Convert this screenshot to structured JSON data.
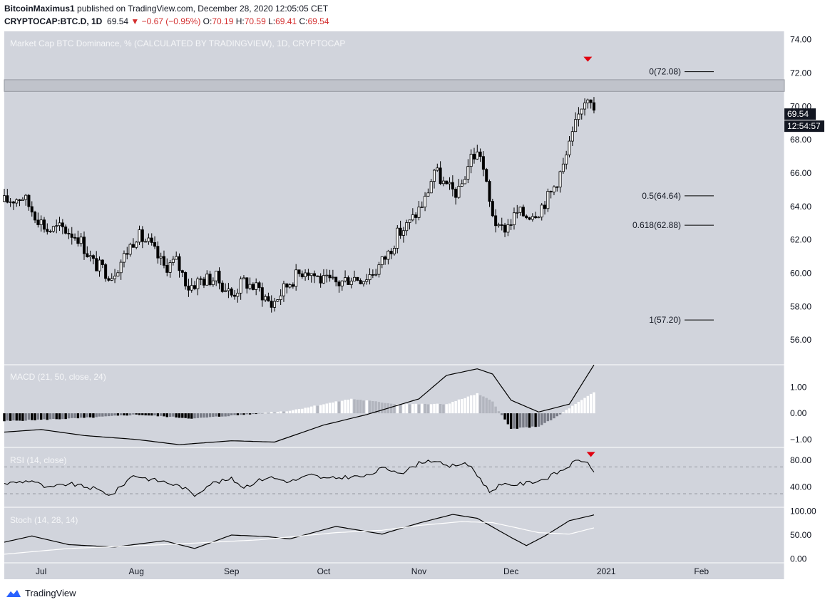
{
  "header": {
    "author": "BitcoinMaximus1",
    "published_text": "published on TradingView.com, December 28, 2020 12:05:05 CET",
    "symbol": "CRYPTOCAP:BTC.D, 1D",
    "last": "69.54",
    "change": "▼ −0.67 (−0.95%)",
    "ohlc": {
      "o_label": "O:",
      "o": "70.19",
      "h_label": "H:",
      "h": "70.59",
      "l_label": "L:",
      "l": "69.41",
      "c_label": "C:",
      "c": "69.54"
    }
  },
  "footer": {
    "brand": "TradingView"
  },
  "colors": {
    "panel_bg": "#d1d4dc",
    "candle": "#000000",
    "marker_red": "#e0000f",
    "hist_up": "#ffffff",
    "hist_up_weak": "#b2b5be",
    "hist_down": "#000000",
    "hist_down_weak": "#787b86",
    "stoch_d": "#ffffff",
    "price_tag": "#131722"
  },
  "chart_data": [
    {
      "type": "candlestick",
      "title": "Market Cap BTC Dominance, % (CALCULATED BY TRADINGVIEW), 1D, CRYPTOCAP",
      "x_tick_labels": [
        "Jul",
        "Aug",
        "Sep",
        "Oct",
        "Nov",
        "Dec",
        "2021",
        "Feb"
      ],
      "x_range": [
        "2020-06-19",
        "2021-02-28"
      ],
      "y_ticks": [
        56,
        58,
        60,
        62,
        64,
        66,
        68,
        70,
        72,
        74
      ],
      "y_tick_labels": [
        "56.00",
        "58.00",
        "60.00",
        "62.00",
        "64.00",
        "66.00",
        "68.00",
        "70.00",
        "72.00",
        "74.00"
      ],
      "ylim": [
        54.6,
        74.5
      ],
      "resistance_zone": [
        70.9,
        71.6
      ],
      "close_path": {
        "dates": [
          "2020-06-19",
          "2020-06-25",
          "2020-06-28",
          "2020-07-03",
          "2020-07-08",
          "2020-07-13",
          "2020-07-18",
          "2020-07-24",
          "2020-07-28",
          "2020-08-01",
          "2020-08-05",
          "2020-08-10",
          "2020-08-14",
          "2020-08-18",
          "2020-08-22",
          "2020-08-27",
          "2020-09-01",
          "2020-09-05",
          "2020-09-10",
          "2020-09-14",
          "2020-09-20",
          "2020-09-25",
          "2020-10-01",
          "2020-10-06",
          "2020-10-10",
          "2020-10-14",
          "2020-10-18",
          "2020-10-22",
          "2020-10-25",
          "2020-10-29",
          "2020-11-03",
          "2020-11-06",
          "2020-11-10",
          "2020-11-14",
          "2020-11-18",
          "2020-11-21",
          "2020-11-24",
          "2020-11-27",
          "2020-11-30",
          "2020-12-03",
          "2020-12-06",
          "2020-12-10",
          "2020-12-14",
          "2020-12-18",
          "2020-12-21",
          "2020-12-24",
          "2020-12-26",
          "2020-12-27",
          "2020-12-28"
        ],
        "values": [
          64.3,
          64.6,
          63.8,
          62.6,
          62.7,
          62.2,
          60.6,
          59.9,
          61.0,
          62.3,
          61.8,
          60.4,
          60.7,
          59.2,
          59.6,
          59.7,
          58.7,
          59.5,
          59.0,
          58.1,
          59.5,
          60.3,
          59.5,
          59.4,
          59.8,
          59.7,
          60.2,
          61.2,
          62.3,
          63.0,
          64.4,
          66.2,
          65.1,
          64.8,
          67.0,
          67.2,
          64.2,
          62.5,
          62.9,
          63.6,
          63.5,
          63.8,
          64.8,
          66.4,
          68.2,
          70.1,
          70.8,
          70.6,
          69.54
        ]
      },
      "annotations": [
        {
          "label": "0(72.08)",
          "value": 72.08
        },
        {
          "label": "0.5(64.64)",
          "value": 64.64
        },
        {
          "label": "0.618(62.88)",
          "value": 62.88
        },
        {
          "label": "1(57.20)",
          "value": 57.2
        }
      ],
      "top_marker": {
        "date": "2020-12-26",
        "value": 72.08
      },
      "price_label": "69.54",
      "countdown_label": "12:54:57"
    },
    {
      "type": "histogram+line",
      "title": "MACD (21, 50, close, 24)",
      "y_ticks": [
        1.0,
        0.0,
        -1.0
      ],
      "y_tick_labels": [
        "1.00",
        "0.00",
        "−1.00"
      ],
      "ylim": [
        -1.25,
        1.8
      ],
      "macd_line": {
        "dates": [
          "2020-06-19",
          "2020-07-01",
          "2020-07-15",
          "2020-08-01",
          "2020-08-15",
          "2020-09-01",
          "2020-09-15",
          "2020-10-01",
          "2020-10-15",
          "2020-11-01",
          "2020-11-10",
          "2020-11-20",
          "2020-11-25",
          "2020-12-01",
          "2020-12-10",
          "2020-12-20",
          "2020-12-28"
        ],
        "values": [
          -0.72,
          -0.62,
          -0.85,
          -1.0,
          -1.2,
          -1.05,
          -1.1,
          -0.45,
          -0.05,
          0.55,
          1.45,
          1.7,
          1.5,
          0.5,
          0.05,
          0.35,
          1.85
        ]
      },
      "histogram": {
        "dates": [
          "2020-06-19",
          "2020-07-15",
          "2020-08-01",
          "2020-08-20",
          "2020-09-05",
          "2020-09-20",
          "2020-10-10",
          "2020-10-25",
          "2020-11-10",
          "2020-11-20",
          "2020-11-25",
          "2020-12-01",
          "2020-12-10",
          "2020-12-15",
          "2020-12-20",
          "2020-12-28"
        ],
        "values": [
          -0.3,
          -0.18,
          -0.05,
          -0.2,
          -0.05,
          0.1,
          0.55,
          0.35,
          0.35,
          0.75,
          0.45,
          -0.6,
          -0.5,
          -0.2,
          0.2,
          0.8
        ]
      }
    },
    {
      "type": "line",
      "title": "RSI (14, close)",
      "y_ticks": [
        40,
        80
      ],
      "y_tick_labels": [
        "40.00",
        "80.00"
      ],
      "band": [
        30,
        70
      ],
      "ylim": [
        12,
        97
      ],
      "rsi_line": {
        "dates": [
          "2020-06-19",
          "2020-06-28",
          "2020-07-03",
          "2020-07-10",
          "2020-07-18",
          "2020-07-24",
          "2020-07-31",
          "2020-08-05",
          "2020-08-10",
          "2020-08-16",
          "2020-08-20",
          "2020-08-25",
          "2020-09-01",
          "2020-09-05",
          "2020-09-10",
          "2020-09-13",
          "2020-09-20",
          "2020-09-27",
          "2020-10-02",
          "2020-10-08",
          "2020-10-15",
          "2020-10-20",
          "2020-10-27",
          "2020-11-02",
          "2020-11-06",
          "2020-11-10",
          "2020-11-15",
          "2020-11-18",
          "2020-11-24",
          "2020-11-27",
          "2020-12-05",
          "2020-12-12",
          "2020-12-18",
          "2020-12-22",
          "2020-12-25",
          "2020-12-28"
        ],
        "values": [
          45,
          50,
          38,
          45,
          38,
          28,
          58,
          52,
          48,
          40,
          28,
          45,
          52,
          40,
          50,
          55,
          48,
          58,
          52,
          55,
          56,
          68,
          62,
          78,
          80,
          70,
          75,
          71,
          33,
          42,
          45,
          52,
          66,
          78,
          80,
          62
        ]
      },
      "top_marker": {
        "date": "2020-12-27",
        "value": 86
      }
    },
    {
      "type": "line",
      "title": "Stoch (14, 28, 14)",
      "y_ticks": [
        0,
        50,
        100
      ],
      "y_tick_labels": [
        "0.00",
        "50.00",
        "100.00"
      ],
      "ylim": [
        -5,
        105
      ],
      "series": [
        {
          "dates": [
            "2020-06-19",
            "2020-06-28",
            "2020-07-10",
            "2020-07-25",
            "2020-08-10",
            "2020-08-20",
            "2020-09-01",
            "2020-09-12",
            "2020-09-20",
            "2020-10-05",
            "2020-10-20",
            "2020-11-01",
            "2020-11-12",
            "2020-11-20",
            "2020-12-01",
            "2020-12-06",
            "2020-12-12",
            "2020-12-20",
            "2020-12-28"
          ],
          "values": [
            35,
            48,
            30,
            25,
            38,
            22,
            50,
            47,
            42,
            68,
            52,
            75,
            93,
            85,
            45,
            28,
            48,
            80,
            92
          ]
        },
        {
          "dates": [
            "2020-06-19",
            "2020-07-10",
            "2020-08-10",
            "2020-09-10",
            "2020-10-05",
            "2020-10-20",
            "2020-11-01",
            "2020-11-15",
            "2020-11-25",
            "2020-12-10",
            "2020-12-20",
            "2020-12-28"
          ],
          "values": [
            10,
            22,
            30,
            40,
            55,
            60,
            70,
            78,
            76,
            55,
            52,
            65
          ]
        }
      ]
    }
  ]
}
